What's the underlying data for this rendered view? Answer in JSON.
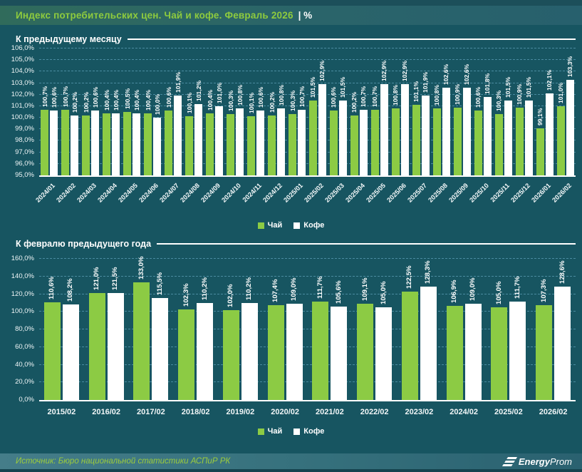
{
  "header": {
    "title": "Индекс потребительских цен. Чай и кофе. Февраль 2026",
    "suffix": "| %"
  },
  "colors": {
    "tea": "#8ccb44",
    "coffee": "#ffffff",
    "background": "#175561",
    "accent_green": "#8ecb3e",
    "gridline": "#4a8ba0"
  },
  "legend": {
    "tea": "Чай",
    "coffee": "Кофе"
  },
  "footer": {
    "source": "Источник: Бюро национальной статистики АСПиР РК",
    "logo_bold": "Energy",
    "logo_light": "Prom"
  },
  "chart_data": [
    {
      "type": "bar",
      "title": "К предыдущему месяцу",
      "categories": [
        "2024/01",
        "2024/02",
        "2024/03",
        "2024/04",
        "2024/05",
        "2024/06",
        "2024/07",
        "2024/08",
        "2024/09",
        "2024/10",
        "2024/11",
        "2024/12",
        "2025/01",
        "2025/02",
        "2025/03",
        "2025/04",
        "2025/05",
        "2025/06",
        "2025/07",
        "2025/08",
        "2025/09",
        "2025/10",
        "2025/11",
        "2025/12",
        "2026/01",
        "2026/02"
      ],
      "series": [
        {
          "name": "Чай",
          "values": [
            100.7,
            100.7,
            100.2,
            100.4,
            100.5,
            100.4,
            100.6,
            100.1,
            100.4,
            100.3,
            100.1,
            100.2,
            100.3,
            101.5,
            100.6,
            100.2,
            100.7,
            100.8,
            101.1,
            100.8,
            100.9,
            100.6,
            100.3,
            100.9,
            99.1,
            101.0
          ]
        },
        {
          "name": "Кофе",
          "values": [
            100.6,
            100.2,
            100.6,
            100.4,
            100.4,
            100.0,
            101.9,
            101.2,
            101.0,
            100.8,
            100.6,
            100.8,
            100.7,
            102.9,
            101.5,
            100.7,
            102.9,
            102.9,
            101.9,
            102.6,
            102.6,
            101.8,
            101.5,
            101.5,
            102.1,
            103.3
          ]
        }
      ],
      "ylim": [
        95,
        106
      ],
      "ytick_step": 1,
      "grid": true,
      "legend_position": "bottom",
      "value_labels": "rotated, format 0,0%",
      "xlabel": "",
      "ylabel": ""
    },
    {
      "type": "bar",
      "title": "К февралю предыдущего года",
      "categories": [
        "2015/02",
        "2016/02",
        "2017/02",
        "2018/02",
        "2019/02",
        "2020/02",
        "2021/02",
        "2022/02",
        "2023/02",
        "2024/02",
        "2025/02",
        "2026/02"
      ],
      "series": [
        {
          "name": "Чай",
          "values": [
            110.6,
            121.0,
            133.0,
            102.3,
            102.0,
            107.4,
            111.7,
            109.1,
            122.5,
            106.9,
            105.0,
            107.3
          ]
        },
        {
          "name": "Кофе",
          "values": [
            108.2,
            121.5,
            115.5,
            110.2,
            110.2,
            109.0,
            105.6,
            105.0,
            128.3,
            109.0,
            111.7,
            128.6
          ]
        }
      ],
      "ylim": [
        0,
        160
      ],
      "ytick_step": 20,
      "grid": true,
      "legend_position": "bottom",
      "value_labels": "rotated, format 0,0%",
      "xlabel": "",
      "ylabel": ""
    }
  ]
}
